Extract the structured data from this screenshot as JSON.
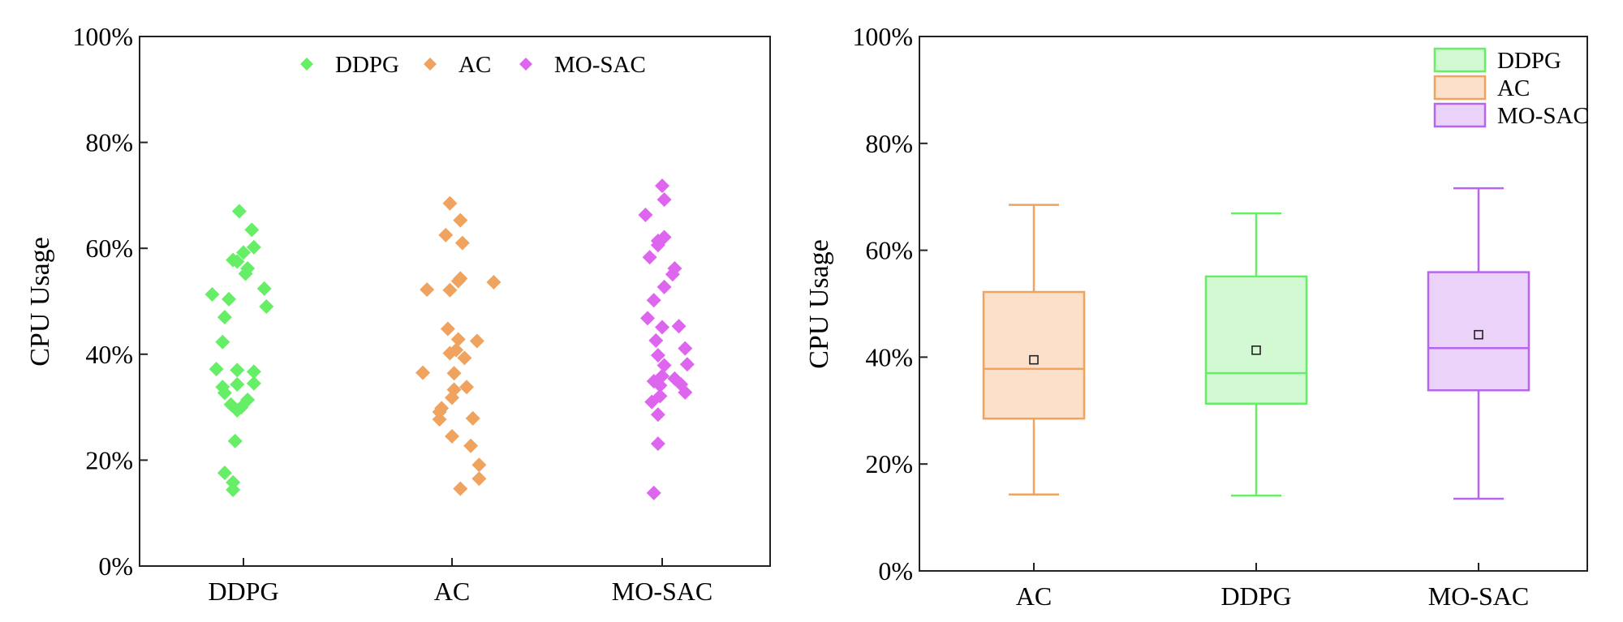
{
  "chart_data": [
    {
      "type": "scatter",
      "ylabel": "CPU Usage",
      "ylim": [
        0,
        100
      ],
      "yticks": [
        "0%",
        "20%",
        "40%",
        "60%",
        "80%",
        "100%"
      ],
      "categories": [
        "DDPG",
        "AC",
        "MO-SAC"
      ],
      "legend": {
        "placement": "top-center",
        "entries": [
          "DDPG",
          "AC",
          "MO-SAC"
        ]
      },
      "series": [
        {
          "name": "DDPG",
          "color": "#66ee66",
          "points": [
            {
              "x": -0.02,
              "y": 67.0
            },
            {
              "x": 0.04,
              "y": 63.5
            },
            {
              "x": 0.05,
              "y": 60.2
            },
            {
              "x": 0.0,
              "y": 59.2
            },
            {
              "x": -0.03,
              "y": 57.5
            },
            {
              "x": 0.02,
              "y": 56.2
            },
            {
              "x": -0.05,
              "y": 57.8
            },
            {
              "x": 0.01,
              "y": 55.2
            },
            {
              "x": 0.1,
              "y": 52.4
            },
            {
              "x": -0.15,
              "y": 51.3
            },
            {
              "x": -0.07,
              "y": 50.4
            },
            {
              "x": 0.11,
              "y": 49.0
            },
            {
              "x": -0.09,
              "y": 47.0
            },
            {
              "x": -0.1,
              "y": 42.3
            },
            {
              "x": -0.13,
              "y": 37.2
            },
            {
              "x": -0.03,
              "y": 37.0
            },
            {
              "x": 0.05,
              "y": 36.7
            },
            {
              "x": -0.03,
              "y": 34.3
            },
            {
              "x": 0.05,
              "y": 34.5
            },
            {
              "x": -0.1,
              "y": 33.8
            },
            {
              "x": -0.09,
              "y": 32.7
            },
            {
              "x": 0.02,
              "y": 31.4
            },
            {
              "x": -0.06,
              "y": 30.5
            },
            {
              "x": -0.01,
              "y": 30.0
            },
            {
              "x": -0.03,
              "y": 29.4
            },
            {
              "x": -0.04,
              "y": 23.6
            },
            {
              "x": -0.09,
              "y": 17.6
            },
            {
              "x": -0.05,
              "y": 15.8
            },
            {
              "x": -0.05,
              "y": 14.4
            }
          ]
        },
        {
          "name": "AC",
          "color": "#f0a35e",
          "points": [
            {
              "x": -0.01,
              "y": 68.5
            },
            {
              "x": 0.04,
              "y": 65.3
            },
            {
              "x": -0.03,
              "y": 62.5
            },
            {
              "x": 0.05,
              "y": 61.0
            },
            {
              "x": 0.04,
              "y": 54.3
            },
            {
              "x": 0.03,
              "y": 53.8
            },
            {
              "x": 0.2,
              "y": 53.6
            },
            {
              "x": -0.12,
              "y": 52.2
            },
            {
              "x": -0.01,
              "y": 52.1
            },
            {
              "x": -0.02,
              "y": 44.8
            },
            {
              "x": 0.03,
              "y": 42.8
            },
            {
              "x": 0.12,
              "y": 42.5
            },
            {
              "x": 0.02,
              "y": 40.8
            },
            {
              "x": -0.01,
              "y": 40.2
            },
            {
              "x": 0.06,
              "y": 39.3
            },
            {
              "x": -0.14,
              "y": 36.5
            },
            {
              "x": 0.01,
              "y": 36.4
            },
            {
              "x": 0.07,
              "y": 33.8
            },
            {
              "x": 0.01,
              "y": 33.3
            },
            {
              "x": 0.0,
              "y": 31.8
            },
            {
              "x": -0.05,
              "y": 29.8
            },
            {
              "x": -0.06,
              "y": 29.1
            },
            {
              "x": -0.06,
              "y": 27.7
            },
            {
              "x": 0.1,
              "y": 27.9
            },
            {
              "x": 0.0,
              "y": 24.5
            },
            {
              "x": 0.09,
              "y": 22.7
            },
            {
              "x": 0.13,
              "y": 19.1
            },
            {
              "x": 0.13,
              "y": 16.5
            },
            {
              "x": 0.04,
              "y": 14.6
            }
          ]
        },
        {
          "name": "MO-SAC",
          "color": "#de66ee",
          "points": [
            {
              "x": 0.0,
              "y": 71.8
            },
            {
              "x": 0.01,
              "y": 69.2
            },
            {
              "x": -0.08,
              "y": 66.3
            },
            {
              "x": 0.01,
              "y": 62.1
            },
            {
              "x": -0.02,
              "y": 61.4
            },
            {
              "x": -0.02,
              "y": 60.6
            },
            {
              "x": -0.06,
              "y": 58.3
            },
            {
              "x": 0.06,
              "y": 56.2
            },
            {
              "x": 0.05,
              "y": 55.1
            },
            {
              "x": 0.01,
              "y": 52.7
            },
            {
              "x": -0.04,
              "y": 50.2
            },
            {
              "x": -0.07,
              "y": 46.8
            },
            {
              "x": 0.08,
              "y": 45.3
            },
            {
              "x": 0.0,
              "y": 45.1
            },
            {
              "x": -0.03,
              "y": 42.6
            },
            {
              "x": 0.11,
              "y": 41.1
            },
            {
              "x": -0.02,
              "y": 39.8
            },
            {
              "x": 0.12,
              "y": 38.1
            },
            {
              "x": 0.01,
              "y": 37.9
            },
            {
              "x": 0.0,
              "y": 35.9
            },
            {
              "x": 0.06,
              "y": 35.4
            },
            {
              "x": -0.04,
              "y": 34.9
            },
            {
              "x": 0.09,
              "y": 34.3
            },
            {
              "x": -0.01,
              "y": 34.1
            },
            {
              "x": 0.11,
              "y": 32.8
            },
            {
              "x": -0.01,
              "y": 32.1
            },
            {
              "x": -0.05,
              "y": 31.0
            },
            {
              "x": -0.02,
              "y": 28.6
            },
            {
              "x": -0.02,
              "y": 23.1
            },
            {
              "x": -0.04,
              "y": 13.8
            }
          ]
        }
      ]
    },
    {
      "type": "box",
      "ylabel": "CPU Usage",
      "ylim": [
        0,
        100
      ],
      "yticks": [
        "0%",
        "20%",
        "40%",
        "60%",
        "80%",
        "100%"
      ],
      "categories": [
        "AC",
        "DDPG",
        "MO-SAC"
      ],
      "legend": {
        "placement": "top-right",
        "entries": [
          "DDPG",
          "AC",
          "MO-SAC"
        ]
      },
      "series": [
        {
          "name": "AC",
          "color": "#f0a35e",
          "fill": "#fde0c9",
          "min": 14.3,
          "q1": 28.5,
          "median": 37.8,
          "q3": 52.2,
          "max": 68.5,
          "mean": 39.5
        },
        {
          "name": "DDPG",
          "color": "#66ee66",
          "fill": "#d2f9d2",
          "min": 14.1,
          "q1": 31.3,
          "median": 37.0,
          "q3": 55.1,
          "max": 66.9,
          "mean": 41.3
        },
        {
          "name": "MO-SAC",
          "color": "#b566ee",
          "fill": "#ead2f9",
          "min": 13.5,
          "q1": 33.8,
          "median": 41.7,
          "q3": 55.9,
          "max": 71.6,
          "mean": 44.2
        }
      ]
    }
  ]
}
